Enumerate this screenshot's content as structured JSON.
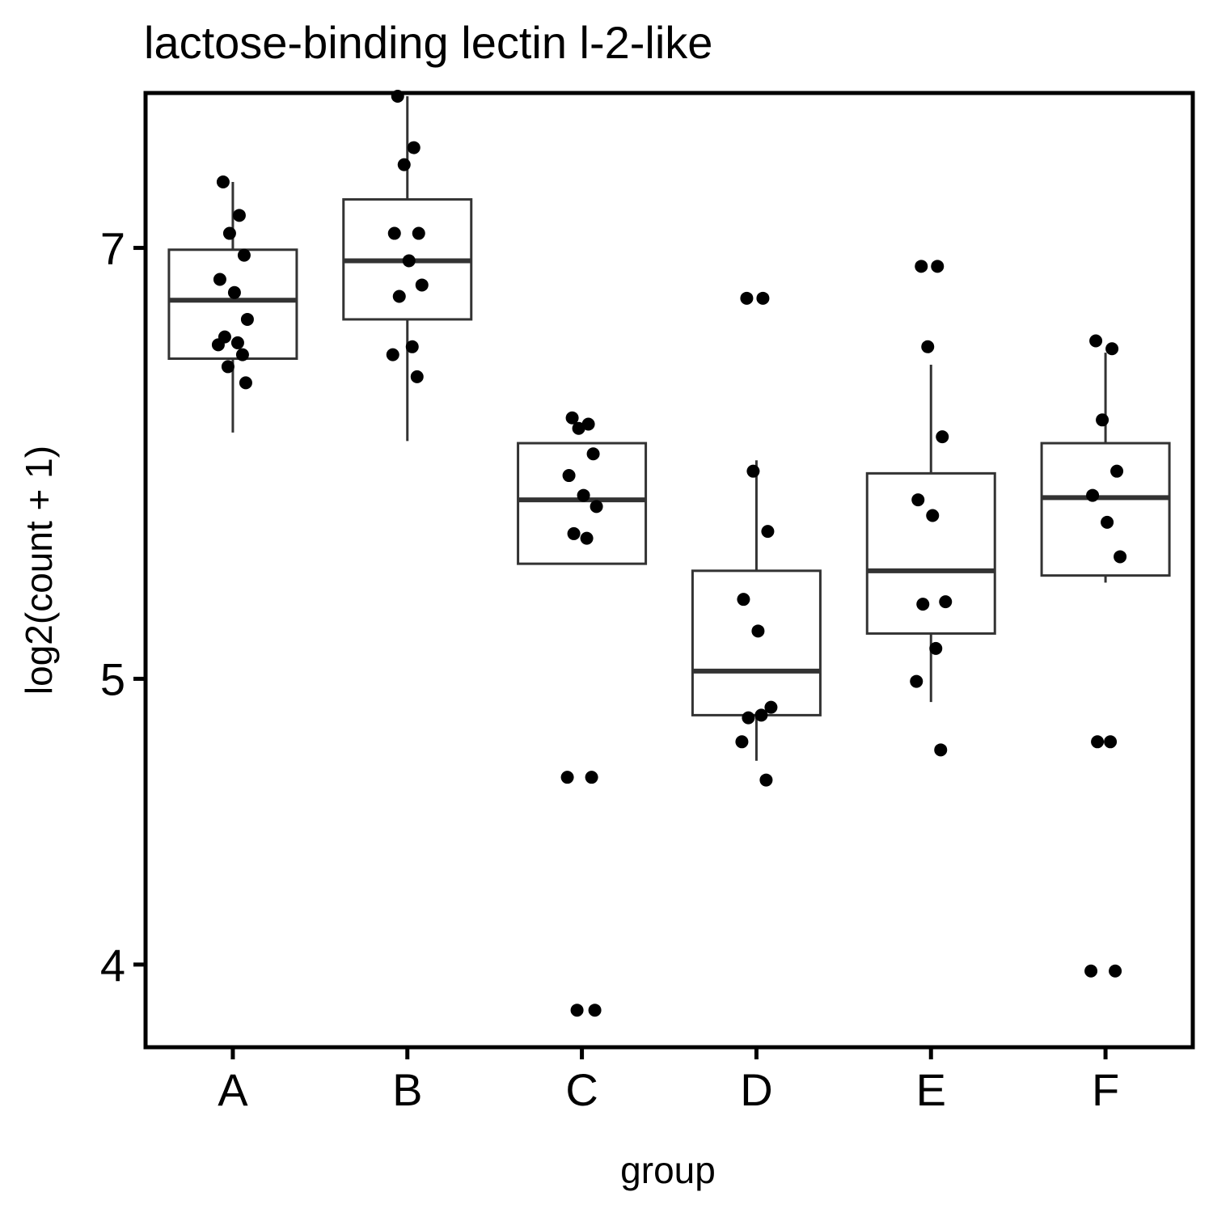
{
  "chart_data": {
    "type": "boxplot",
    "title": "lactose-binding lectin l-2-like",
    "xlabel": "group",
    "ylabel": "log2(count + 1)",
    "y_scale": "log",
    "ylim": [
      3.75,
      7.9
    ],
    "y_ticks": [
      4,
      5,
      7
    ],
    "grid": false,
    "legend": "none",
    "categories": [
      "A",
      "B",
      "C",
      "D",
      "E",
      "F"
    ],
    "boxes": [
      {
        "group": "A",
        "whisker_low": 6.06,
        "q1": 6.42,
        "median": 6.72,
        "q3": 6.99,
        "whisker_high": 7.37
      },
      {
        "group": "B",
        "whisker_low": 6.02,
        "q1": 6.62,
        "median": 6.93,
        "q3": 7.27,
        "whisker_high": 7.88
      },
      {
        "group": "C",
        "whisker_low": 5.47,
        "q1": 5.47,
        "median": 5.75,
        "q3": 6.01,
        "whisker_high": 6.01
      },
      {
        "group": "D",
        "whisker_low": 4.69,
        "q1": 4.86,
        "median": 5.03,
        "q3": 5.44,
        "whisker_high": 5.93
      },
      {
        "group": "E",
        "whisker_low": 4.91,
        "q1": 5.18,
        "median": 5.44,
        "q3": 5.87,
        "whisker_high": 6.39
      },
      {
        "group": "F",
        "whisker_low": 5.39,
        "q1": 5.42,
        "median": 5.76,
        "q3": 6.01,
        "whisker_high": 6.45
      }
    ],
    "points": [
      {
        "group": "A",
        "values": [
          7.37,
          7.18,
          7.08,
          6.96,
          6.83,
          6.76,
          6.62,
          6.53,
          6.5,
          6.49,
          6.44,
          6.38,
          6.3
        ]
      },
      {
        "group": "B",
        "values": [
          7.88,
          7.57,
          7.47,
          7.08,
          7.08,
          6.93,
          6.8,
          6.74,
          6.48,
          6.44,
          6.33
        ]
      },
      {
        "group": "C",
        "values": [
          6.13,
          6.1,
          6.08,
          5.96,
          5.86,
          5.77,
          5.72,
          5.6,
          5.58,
          4.63,
          4.63,
          3.86,
          3.86
        ]
      },
      {
        "group": "D",
        "values": [
          6.73,
          6.73,
          5.88,
          5.61,
          5.32,
          5.19,
          4.89,
          4.85,
          4.86,
          4.76,
          4.62
        ]
      },
      {
        "group": "E",
        "values": [
          6.9,
          6.9,
          6.48,
          6.04,
          5.75,
          5.68,
          5.31,
          5.3,
          5.12,
          4.99,
          4.73
        ]
      },
      {
        "group": "F",
        "values": [
          6.51,
          6.47,
          6.12,
          5.88,
          5.77,
          5.65,
          5.5,
          4.76,
          4.76,
          3.98,
          3.98
        ]
      }
    ]
  }
}
